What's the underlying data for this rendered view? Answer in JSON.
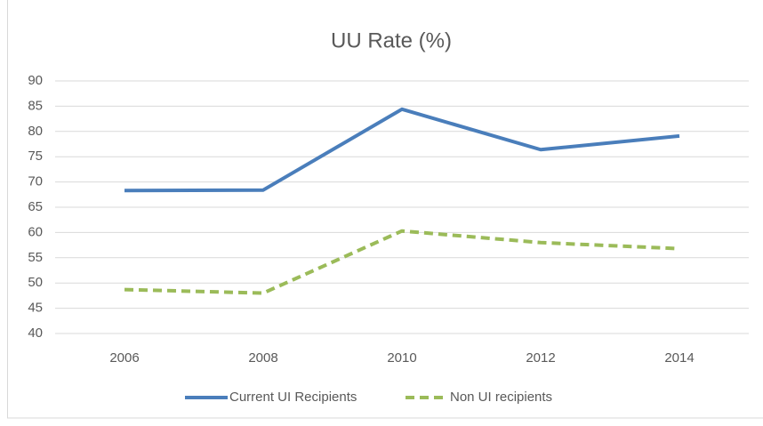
{
  "chart_data": {
    "type": "line",
    "title": "UU Rate  (%)",
    "categories": [
      "2006",
      "2008",
      "2010",
      "2012",
      "2014"
    ],
    "series": [
      {
        "name": "Current UI Recipients",
        "color": "#4a7ebb",
        "line_style": "solid",
        "values": [
          68.3,
          68.4,
          84.4,
          76.4,
          79.1
        ]
      },
      {
        "name": "Non UI recipients",
        "color": "#9bbb59",
        "line_style": "dashed",
        "values": [
          48.7,
          48.0,
          60.3,
          58.0,
          56.8
        ]
      }
    ],
    "ylim": [
      40,
      90
    ],
    "yticks": [
      40,
      45,
      50,
      55,
      60,
      65,
      70,
      75,
      80,
      85,
      90
    ],
    "grid": true,
    "legend": "bottom"
  }
}
